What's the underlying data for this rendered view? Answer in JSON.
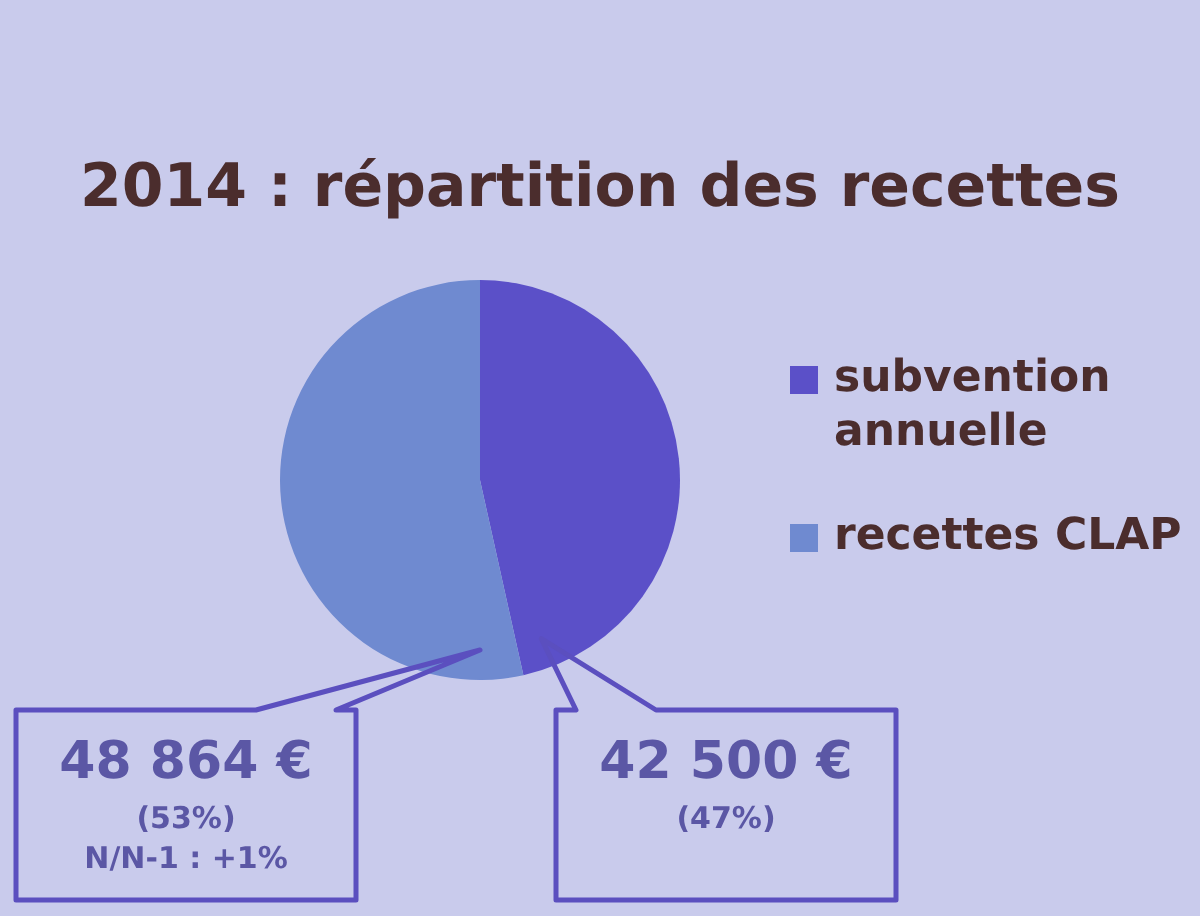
{
  "chart_data": {
    "type": "pie",
    "title": "2014 : répartition des recettes",
    "categories": [
      "subvention annuelle",
      "recettes CLAP"
    ],
    "values": [
      42500,
      48864
    ],
    "colors": [
      "#5b50c8",
      "#6f8ad0"
    ],
    "value_labels": [
      "42 500 €\n(47%)",
      "48 864 €\n(53%)\nN/N-1 : +1%"
    ],
    "legend": "right"
  }
}
